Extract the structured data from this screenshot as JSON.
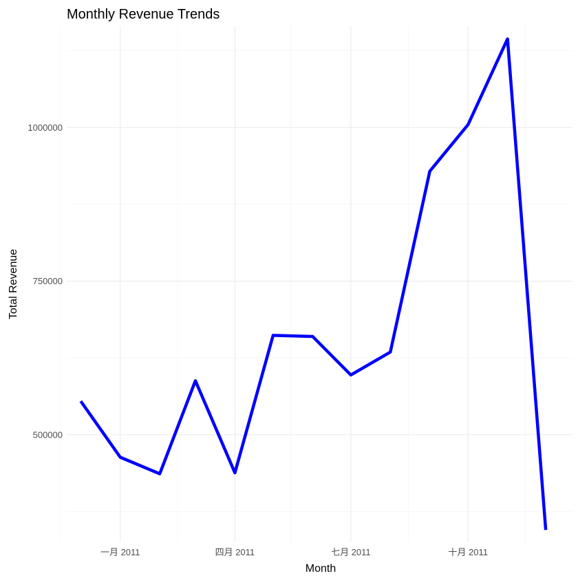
{
  "chart_data": {
    "type": "line",
    "title": "Monthly Revenue Trends",
    "xlabel": "Month",
    "ylabel": "Total Revenue",
    "x": [
      "2010-12",
      "2011-01",
      "2011-02",
      "2011-03",
      "2011-04",
      "2011-05",
      "2011-06",
      "2011-07",
      "2011-08",
      "2011-09",
      "2011-10",
      "2011-11",
      "2011-12"
    ],
    "series": [
      {
        "values": [
          554604,
          463306,
          436413,
          587836,
          437992,
          661713,
          659936,
          597233,
          634430,
          928962,
          1004650,
          1144170,
          345000
        ],
        "color": "#0000ff"
      }
    ],
    "xlim": [
      "2010-11-20",
      "2011-12-22"
    ],
    "ylim": [
      325000,
      1165000
    ],
    "x_ticks": [
      {
        "date": "2011-01",
        "label": "一月 2011"
      },
      {
        "date": "2011-04",
        "label": "四月 2011"
      },
      {
        "date": "2011-07",
        "label": "七月 2011"
      },
      {
        "date": "2011-10",
        "label": "十月 2011"
      }
    ],
    "x_minor_ticks": [
      "2010-11-15",
      "2011-02-15",
      "2011-05-15",
      "2011-08-15",
      "2011-11-15"
    ],
    "y_ticks": [
      {
        "value": 500000,
        "label": "500000"
      },
      {
        "value": 750000,
        "label": "750000"
      },
      {
        "value": 1000000,
        "label": "1000000"
      }
    ],
    "y_minor_ticks": [
      375000,
      625000,
      875000,
      1125000
    ],
    "grid": true,
    "legend": "none"
  }
}
